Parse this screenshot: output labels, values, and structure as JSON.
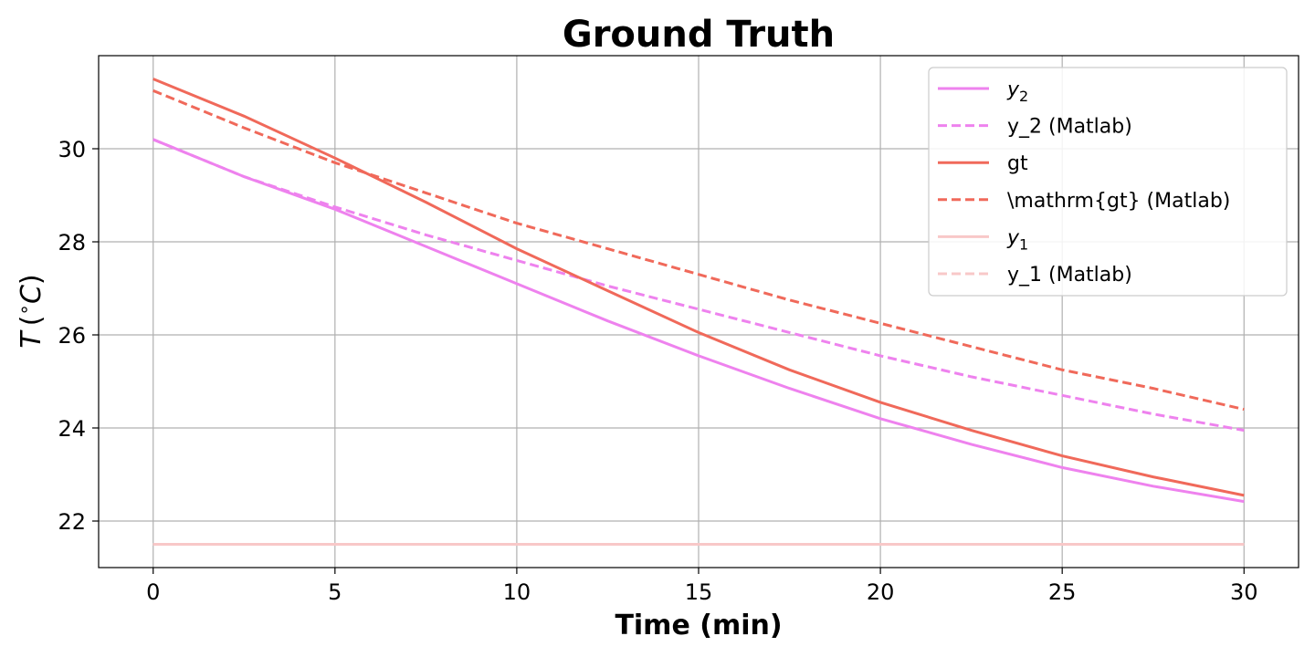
{
  "chart_data": {
    "type": "line",
    "title": "Ground Truth",
    "xlabel": "Time (min)",
    "ylabel_parts": [
      "T",
      "(",
      "∘",
      "C",
      ")"
    ],
    "xlim": [
      -1.5,
      31.5
    ],
    "ylim": [
      21.0,
      32.0
    ],
    "xticks": [
      0,
      5,
      10,
      15,
      20,
      25,
      30
    ],
    "yticks": [
      22,
      24,
      26,
      28,
      30
    ],
    "grid": true,
    "legend_position": "top-right",
    "series": [
      {
        "name": "y",
        "name_sub": "2",
        "color": "#ee82ee",
        "style": "solid",
        "x": [
          0,
          2.5,
          5,
          7.5,
          10,
          12.5,
          15,
          17.5,
          20,
          22.5,
          25,
          27.5,
          30
        ],
        "y": [
          30.2,
          29.4,
          28.7,
          27.9,
          27.1,
          26.3,
          25.55,
          24.85,
          24.2,
          23.65,
          23.15,
          22.75,
          22.42
        ]
      },
      {
        "name": "y_2 (Matlab)",
        "color": "#ee82ee",
        "style": "dashed",
        "x": [
          0,
          2.5,
          5,
          7.5,
          10,
          12.5,
          15,
          17.5,
          20,
          22.5,
          25,
          27.5,
          30
        ],
        "y": [
          30.2,
          29.4,
          28.75,
          28.15,
          27.6,
          27.05,
          26.55,
          26.05,
          25.55,
          25.1,
          24.7,
          24.3,
          23.95
        ]
      },
      {
        "name": "gt",
        "color": "#f0695a",
        "style": "solid",
        "x": [
          0,
          2.5,
          5,
          7.5,
          10,
          12.5,
          15,
          17.5,
          20,
          22.5,
          25,
          27.5,
          30
        ],
        "y": [
          31.5,
          30.7,
          29.8,
          28.85,
          27.85,
          26.95,
          26.05,
          25.25,
          24.55,
          23.95,
          23.4,
          22.95,
          22.55
        ]
      },
      {
        "name": "\\mathrm{gt} (Matlab)",
        "color": "#f0695a",
        "style": "dashed",
        "x": [
          0,
          2.5,
          5,
          7.5,
          10,
          12.5,
          15,
          17.5,
          20,
          22.5,
          25,
          27.5,
          30
        ],
        "y": [
          31.25,
          30.45,
          29.7,
          29.05,
          28.4,
          27.85,
          27.3,
          26.75,
          26.25,
          25.75,
          25.25,
          24.85,
          24.4
        ]
      },
      {
        "name": "y",
        "name_sub": "1",
        "color": "#f8c8c8",
        "style": "solid",
        "x": [
          0,
          30
        ],
        "y": [
          21.5,
          21.5
        ]
      },
      {
        "name": "y_1 (Matlab)",
        "color": "#f8c8c8",
        "style": "dashed",
        "x": [
          0,
          30
        ],
        "y": [
          21.5,
          21.5
        ]
      }
    ]
  }
}
